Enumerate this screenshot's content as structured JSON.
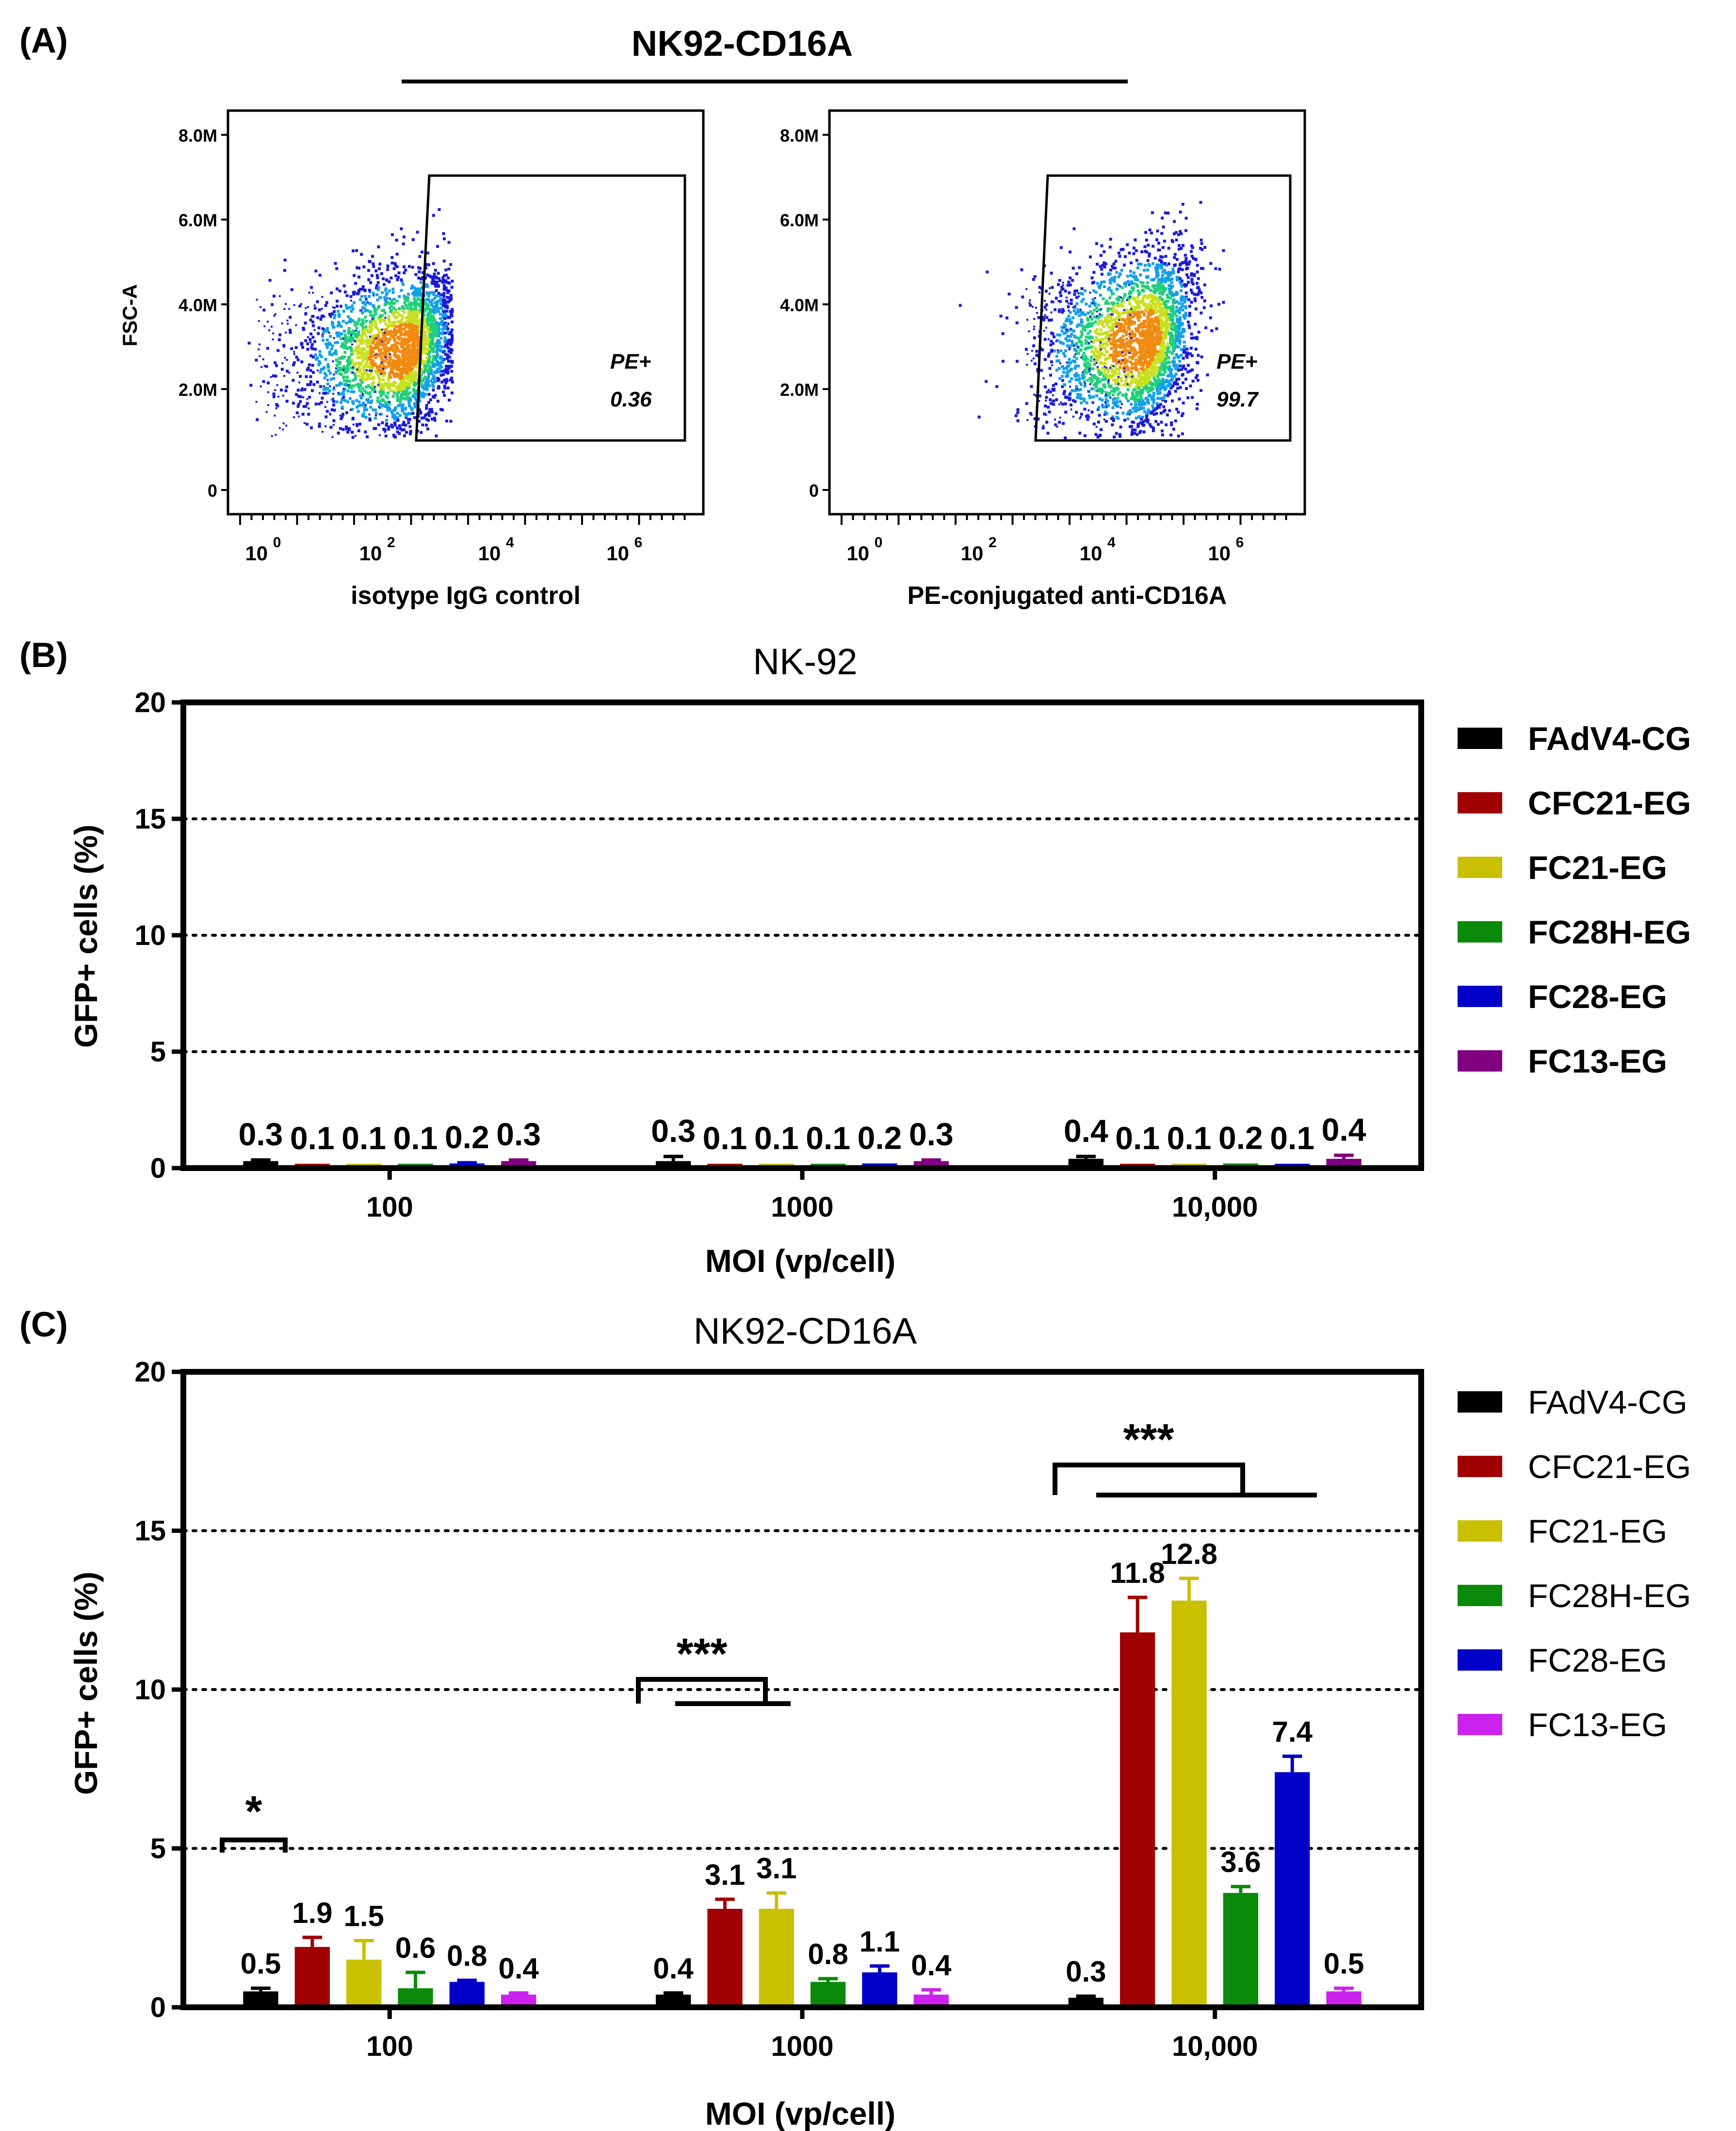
{
  "panel_a": {
    "label": "(A)",
    "title": "NK92-CD16A",
    "y_axis_title": "FSC-A",
    "y_ticks": [
      "8.0M",
      "6.0M",
      "4.0M",
      "2.0M",
      "0"
    ],
    "x_tick_base": "10",
    "x_tick_exponents": [
      "0",
      "2",
      "4",
      "6"
    ],
    "plots": [
      {
        "x_axis_title": "isotype IgG control",
        "gate_label": "PE+",
        "gate_value": "0.36"
      },
      {
        "x_axis_title": "PE-conjugated anti-CD16A",
        "gate_label": "PE+",
        "gate_value": "99.7"
      }
    ]
  },
  "panel_b": {
    "label": "(B)",
    "title": "NK-92",
    "ylabel": "GFP+ cells (%)",
    "xlabel": "MOI (vp/cell)"
  },
  "panel_c": {
    "label": "(C)",
    "title": "NK92-CD16A",
    "ylabel": "GFP+ cells (%)",
    "xlabel": "MOI (vp/cell)",
    "significance": [
      "*",
      "***",
      "***"
    ]
  },
  "chart_data": [
    {
      "type": "bar",
      "panel": "B",
      "title": "NK-92",
      "xlabel": "MOI (vp/cell)",
      "ylabel": "GFP+ cells (%)",
      "ylim": [
        0,
        20
      ],
      "yticks": [
        0,
        5,
        10,
        15,
        20
      ],
      "gridlines": [
        5,
        10,
        15
      ],
      "categories": [
        "100",
        "1000",
        "10,000"
      ],
      "series": [
        {
          "name": "FAdV4-CG",
          "color": "#000000",
          "values": [
            0.3,
            0.3,
            0.4
          ],
          "errors": [
            0.05,
            0.2,
            0.1
          ],
          "labels": [
            "0.3",
            "0.3",
            "0.4"
          ]
        },
        {
          "name": "CFC21-EG",
          "color": "#a00000",
          "values": [
            0.1,
            0.1,
            0.1
          ],
          "errors": [
            0,
            0,
            0
          ],
          "labels": [
            "0.1",
            "0.1",
            "0.1"
          ]
        },
        {
          "name": "FC21-EG",
          "color": "#c8c000",
          "values": [
            0.1,
            0.1,
            0.1
          ],
          "errors": [
            0,
            0,
            0
          ],
          "labels": [
            "0.1",
            "0.1",
            "0.1"
          ]
        },
        {
          "name": "FC28H-EG",
          "color": "#0a8a0a",
          "values": [
            0.1,
            0.1,
            0.2
          ],
          "errors": [
            0,
            0,
            0
          ],
          "labels": [
            "0.1",
            "0.1",
            "0.2"
          ]
        },
        {
          "name": "FC28-EG",
          "color": "#0000c8",
          "values": [
            0.2,
            0.2,
            0.1
          ],
          "errors": [
            0.03,
            0,
            0
          ],
          "labels": [
            "0.2",
            "0.2",
            "0.1"
          ]
        },
        {
          "name": "FC13-EG",
          "color": "#800080",
          "values": [
            0.3,
            0.3,
            0.4
          ],
          "errors": [
            0.05,
            0.05,
            0.15
          ],
          "labels": [
            "0.3",
            "0.3",
            "0.4"
          ]
        }
      ]
    },
    {
      "type": "bar",
      "panel": "C",
      "title": "NK92-CD16A",
      "xlabel": "MOI (vp/cell)",
      "ylabel": "GFP+ cells (%)",
      "ylim": [
        0,
        20
      ],
      "yticks": [
        0,
        5,
        10,
        15,
        20
      ],
      "gridlines": [
        5,
        10,
        15
      ],
      "categories": [
        "100",
        "1000",
        "10,000"
      ],
      "series": [
        {
          "name": "FAdV4-CG",
          "color": "#000000",
          "values": [
            0.5,
            0.4,
            0.3
          ],
          "errors": [
            0.1,
            0.05,
            0.05
          ],
          "labels": [
            "0.5",
            "0.4",
            "0.3"
          ]
        },
        {
          "name": "CFC21-EG",
          "color": "#a00000",
          "values": [
            1.9,
            3.1,
            11.8
          ],
          "errors": [
            0.3,
            0.3,
            1.1
          ],
          "labels": [
            "1.9",
            "3.1",
            "11.8"
          ]
        },
        {
          "name": "FC21-EG",
          "color": "#c8c000",
          "values": [
            1.5,
            3.1,
            12.8
          ],
          "errors": [
            0.6,
            0.5,
            0.7
          ],
          "labels": [
            "1.5",
            "3.1",
            "12.8"
          ]
        },
        {
          "name": "FC28H-EG",
          "color": "#0a8a0a",
          "values": [
            0.6,
            0.8,
            3.6
          ],
          "errors": [
            0.5,
            0.1,
            0.2
          ],
          "labels": [
            "0.6",
            "0.8",
            "3.6"
          ]
        },
        {
          "name": "FC28-EG",
          "color": "#0000c8",
          "values": [
            0.8,
            1.1,
            7.4
          ],
          "errors": [
            0.05,
            0.2,
            0.5
          ],
          "labels": [
            "0.8",
            "1.1",
            "7.4"
          ]
        },
        {
          "name": "FC13-EG",
          "color": "#cc22ee",
          "values": [
            0.4,
            0.4,
            0.5
          ],
          "errors": [
            0.05,
            0.15,
            0.1
          ],
          "labels": [
            "0.4",
            "0.4",
            "0.5"
          ]
        }
      ]
    }
  ]
}
